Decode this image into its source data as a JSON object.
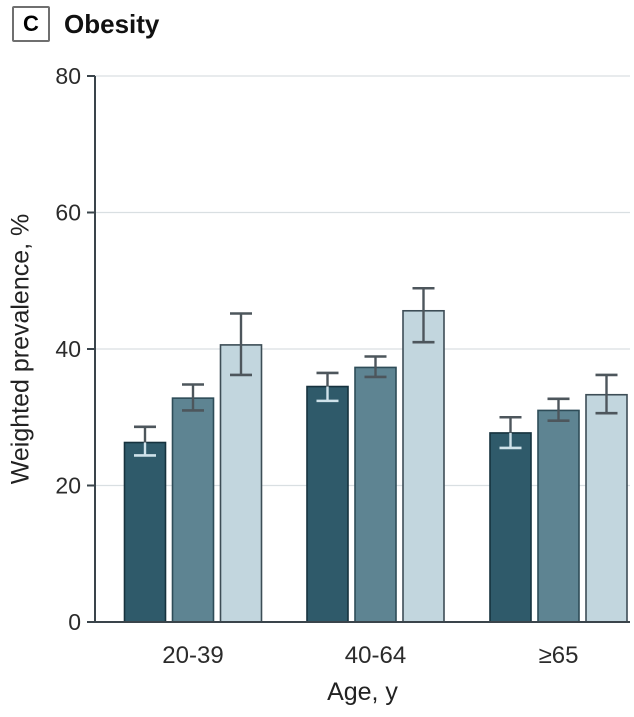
{
  "panel": {
    "letter": "C",
    "title": "Obesity"
  },
  "chart_data": {
    "type": "bar",
    "title": "Obesity",
    "categories": [
      "20-39",
      "40-64",
      "≥65"
    ],
    "xlabel": "Age, y",
    "ylabel": "Weighted prevalence, %",
    "ylim": [
      0,
      80
    ],
    "yticks": [
      0,
      20,
      40,
      60,
      80
    ],
    "grid": true,
    "legend": "none",
    "axis_color": "#3a444b",
    "gridline_color": "#d9dfe2",
    "error_bar_color": "#4d565c",
    "series": [
      {
        "name": "series-1-dark",
        "color": "#2f5a6a",
        "border_color": "#16323e",
        "values": [
          26.3,
          34.5,
          27.7
        ],
        "error_low": [
          24.4,
          32.4,
          25.5
        ],
        "error_high": [
          28.6,
          36.5,
          30.0
        ],
        "inner_whisker_color": "#cfe2ea"
      },
      {
        "name": "series-2-medium",
        "color": "#5e8492",
        "border_color": "#2e4c58",
        "values": [
          32.8,
          37.3,
          31.0
        ],
        "error_low": [
          31.0,
          35.9,
          29.5
        ],
        "error_high": [
          34.8,
          38.9,
          32.7
        ]
      },
      {
        "name": "series-3-light",
        "color": "#c2d6de",
        "border_color": "#3d4d56",
        "values": [
          40.6,
          45.6,
          33.3
        ],
        "error_low": [
          36.2,
          41.0,
          30.6
        ],
        "error_high": [
          45.2,
          48.9,
          36.2
        ]
      }
    ]
  }
}
